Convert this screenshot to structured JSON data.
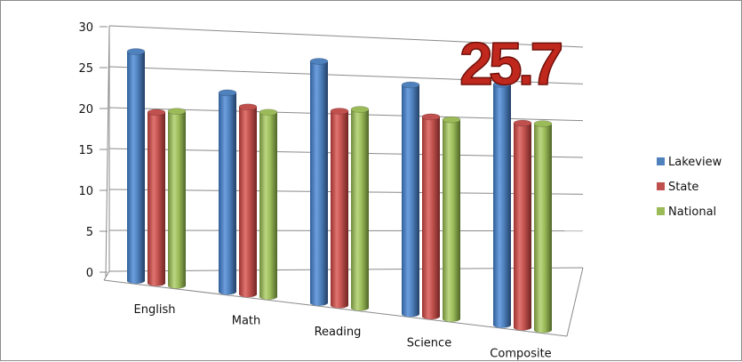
{
  "chart_data": {
    "type": "bar",
    "style": "3d-cylinder",
    "categories": [
      "English",
      "Math",
      "Reading",
      "Science",
      "Composite"
    ],
    "series": [
      {
        "name": "Lakeview",
        "color": "#4f81bd",
        "values": [
          27.3,
          22.6,
          27.0,
          24.4,
          24.9
        ]
      },
      {
        "name": "State",
        "color": "#c0504d",
        "values": [
          19.9,
          20.9,
          20.7,
          20.3,
          19.8
        ]
      },
      {
        "name": "National",
        "color": "#9bbb59",
        "values": [
          20.1,
          20.3,
          21.0,
          20.0,
          19.8
        ]
      }
    ],
    "y_ticks": [
      "0",
      "5",
      "10",
      "15",
      "20",
      "25",
      "30"
    ],
    "ylim": [
      0,
      30
    ],
    "grid": true,
    "legend_position": "right",
    "annotation": "25.7",
    "title": "",
    "xlabel": "",
    "ylabel": ""
  }
}
